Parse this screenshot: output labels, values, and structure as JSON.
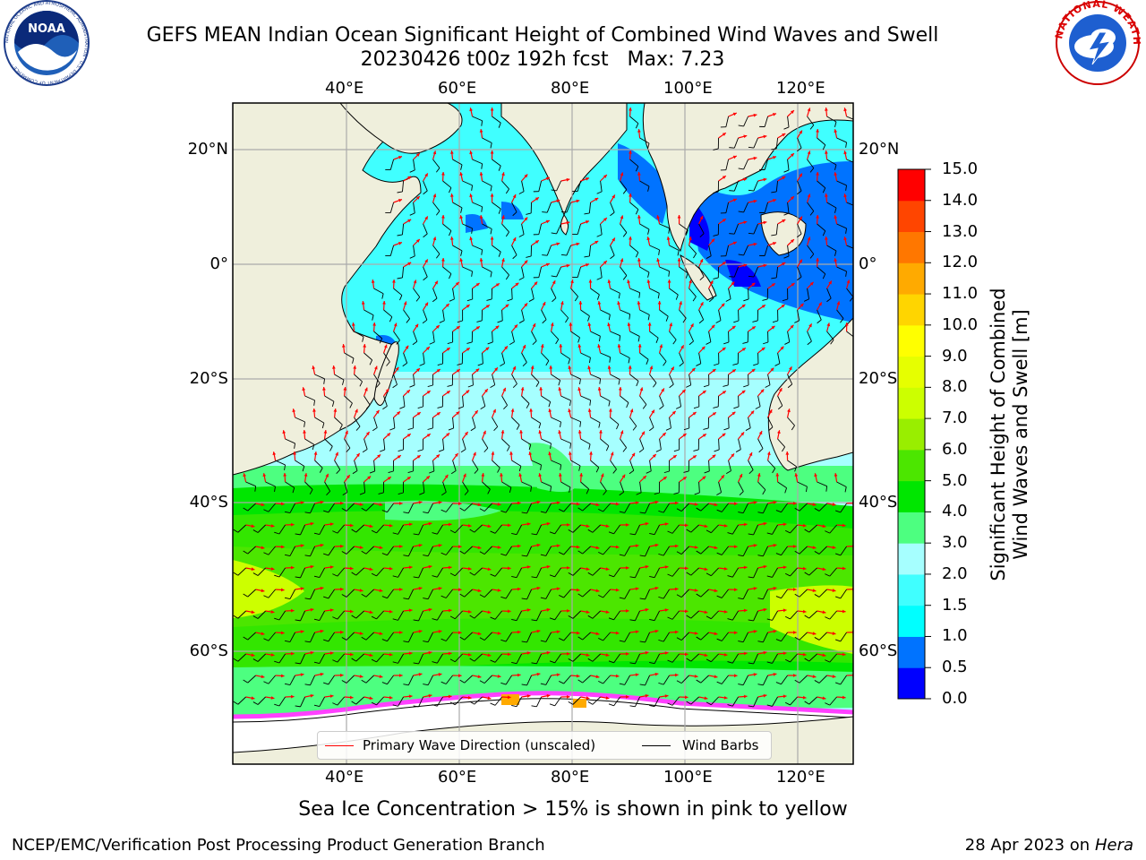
{
  "title_line1": "GEFS MEAN Indian Ocean Significant Height of Combined Wind Waves and Swell",
  "title_line2": "20230426 t00z 192h fcst   Max: 7.23",
  "logos": {
    "left": "NOAA",
    "left_ring": "NATIONAL OCEANIC AND ATMOSPHERIC ADMINISTRATION · U.S. DEPARTMENT OF COMMERCE ·",
    "right_ring": "NATIONAL WEATHER SERVICE"
  },
  "map": {
    "lon_range": [
      20,
      130
    ],
    "lat_range": [
      -73,
      27
    ],
    "lon_labels_top": [
      "40°E",
      "60°E",
      "80°E",
      "100°E",
      "120°E"
    ],
    "lon_labels_bottom": [
      "40°E",
      "60°E",
      "80°E",
      "100°E",
      "120°E"
    ],
    "lat_labels_left": [
      "20°N",
      "0°",
      "20°S",
      "40°S",
      "60°S"
    ],
    "lat_labels_right": [
      "20°N",
      "0°",
      "20°S",
      "40°S",
      "60°S"
    ],
    "gridlines": true
  },
  "colorbar": {
    "title_line1": "Significant Height of Combined",
    "title_line2": "Wind Waves and Swell [m]",
    "ticks": [
      "0.0",
      "0.5",
      "1.0",
      "1.5",
      "2.0",
      "3.0",
      "4.0",
      "5.0",
      "6.0",
      "7.0",
      "8.0",
      "9.0",
      "10.0",
      "11.0",
      "12.0",
      "13.0",
      "14.0",
      "15.0"
    ],
    "colors": [
      "#0000ff",
      "#0073ff",
      "#00ffff",
      "#40ffff",
      "#a6ffff",
      "#4dff80",
      "#00e600",
      "#4ce600",
      "#99ee00",
      "#ccff00",
      "#e6ff00",
      "#ffff00",
      "#ffd500",
      "#ffaa00",
      "#ff7700",
      "#ff4500",
      "#ff0000"
    ]
  },
  "legend": {
    "wave": "Primary Wave Direction (unscaled)",
    "wind": "Wind Barbs",
    "wave_color": "#ff0000",
    "wind_color": "#000000"
  },
  "caption": "Sea Ice Concentration > 15% is shown in pink to yellow",
  "footer_left": "NCEP/EMC/Verification Post Processing Product Generation Branch",
  "footer_right_date": "28 Apr 2023 on",
  "footer_right_host": "Hera"
}
